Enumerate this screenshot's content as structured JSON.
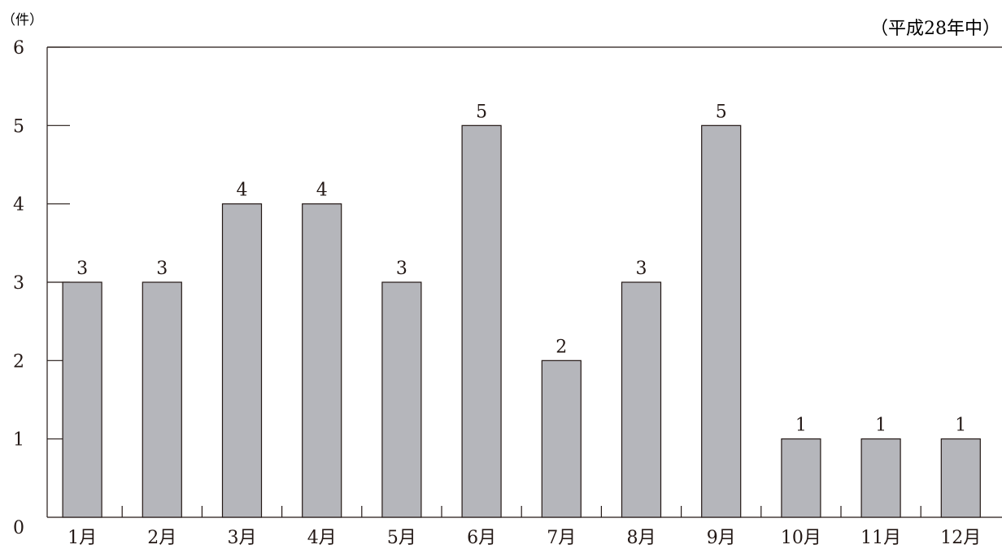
{
  "chart_data": {
    "type": "bar",
    "unit_label": "（件）",
    "note": "（平成28年中）",
    "categories": [
      "1月",
      "2月",
      "3月",
      "4月",
      "5月",
      "6月",
      "7月",
      "8月",
      "9月",
      "10月",
      "11月",
      "12月"
    ],
    "values": [
      3,
      3,
      4,
      4,
      3,
      5,
      2,
      3,
      5,
      1,
      1,
      1
    ],
    "ylim": [
      0,
      6
    ],
    "yticks": [
      0,
      1,
      2,
      3,
      4,
      5,
      6
    ],
    "grid": false,
    "colors": {
      "bar_fill": "#b5b6bb",
      "bar_stroke": "#231815",
      "axis": "#231815",
      "text": "#231815"
    }
  }
}
